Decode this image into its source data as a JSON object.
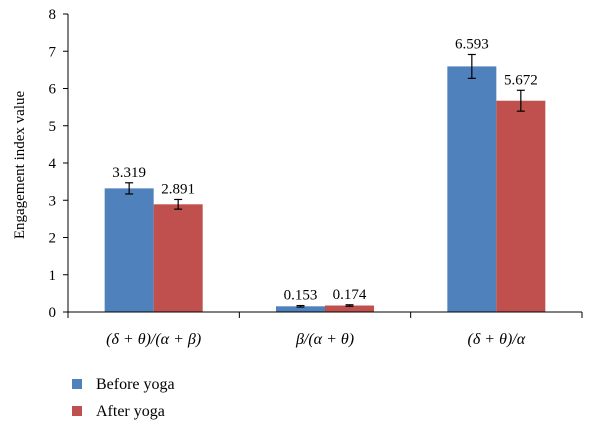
{
  "chart_data": {
    "type": "bar",
    "title": "",
    "xlabel": "",
    "ylabel": "Engagement index value",
    "ylim": [
      0,
      8
    ],
    "yticks": [
      0,
      1,
      2,
      3,
      4,
      5,
      6,
      7,
      8
    ],
    "grid": false,
    "legend_position": "bottom-left",
    "categories": [
      "(δ + θ)/(α + β)",
      "β/(α + θ)",
      "(δ + θ)/α"
    ],
    "series": [
      {
        "name": "Before yoga",
        "color": "#4f81bd",
        "values": [
          3.319,
          0.153,
          6.593
        ],
        "value_labels": [
          "3.319",
          "0.153",
          "6.593"
        ],
        "error": [
          0.15,
          0.02,
          0.32
        ]
      },
      {
        "name": "After yoga",
        "color": "#c0504d",
        "values": [
          2.891,
          0.174,
          5.672
        ],
        "value_labels": [
          "2.891",
          "0.174",
          "5.672"
        ],
        "error": [
          0.13,
          0.02,
          0.28
        ]
      }
    ]
  }
}
